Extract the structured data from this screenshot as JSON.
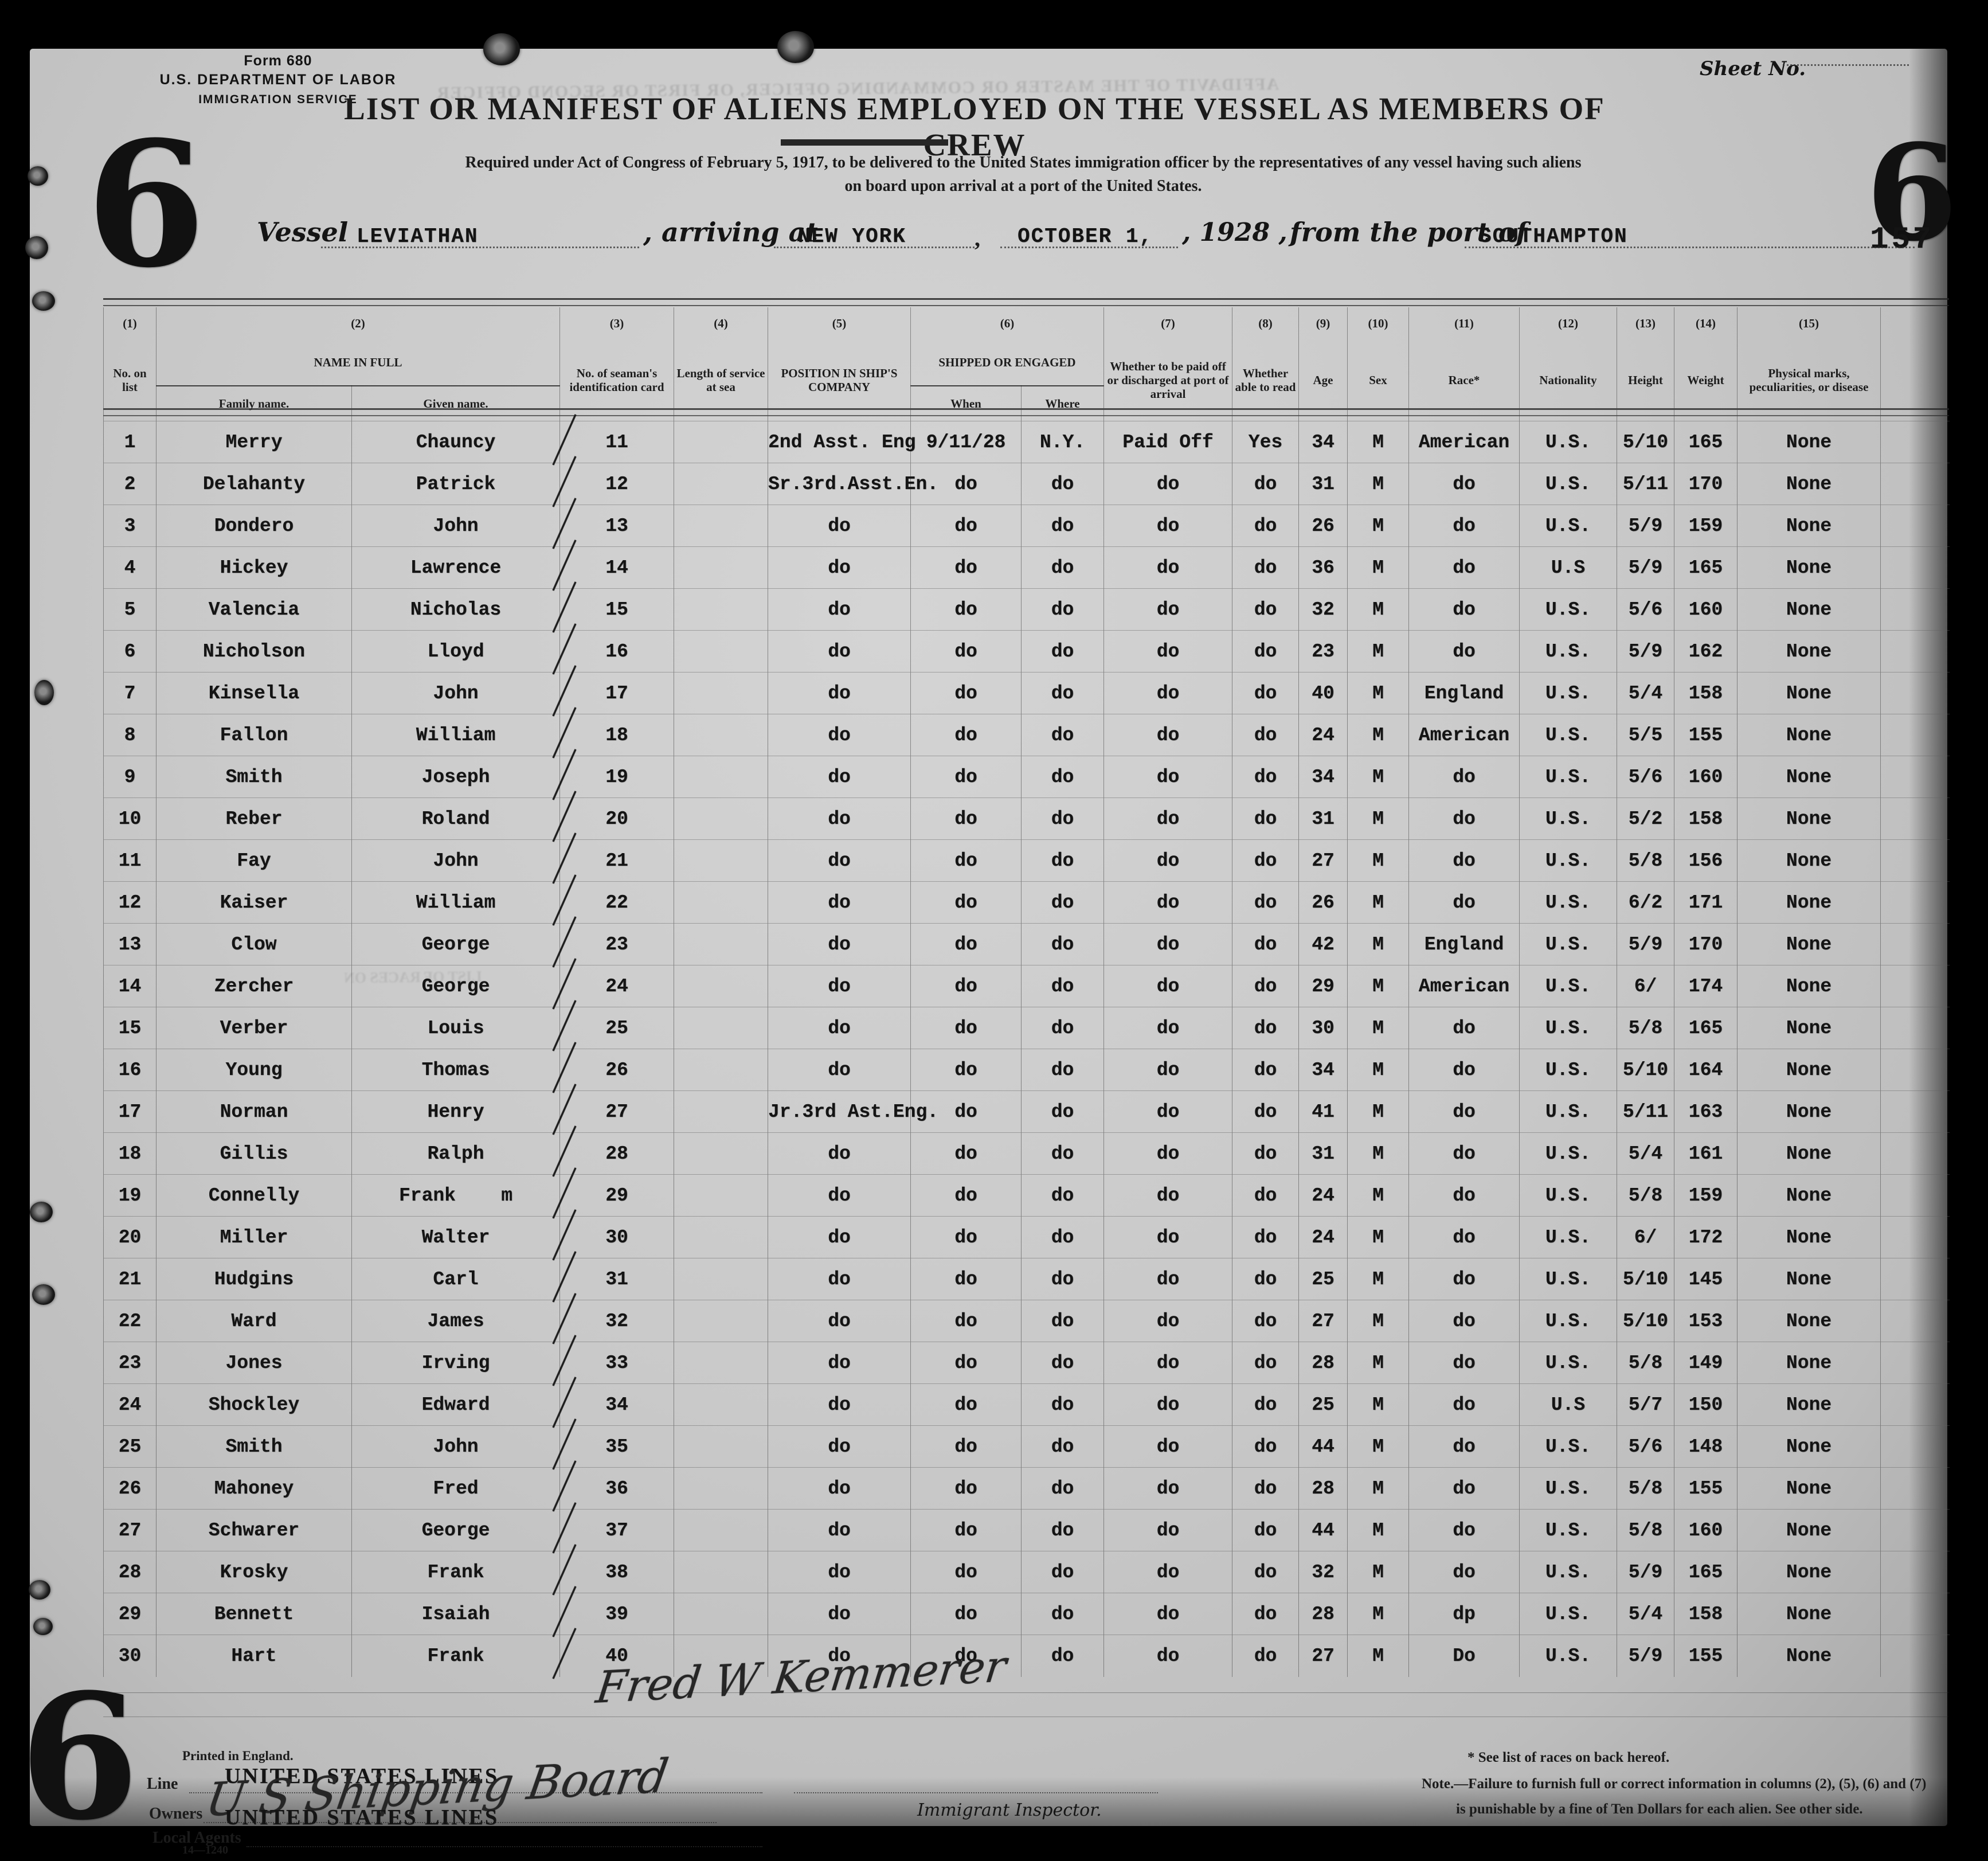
{
  "form": {
    "form_no": "Form 680",
    "department": "U.S. DEPARTMENT OF LABOR",
    "service": "IMMIGRATION SERVICE",
    "sheet_no_label": "Sheet No.",
    "stamp_left": "6",
    "stamp_right": "6",
    "stamp_bottom": "6",
    "page_number": "157",
    "printed_in": "Printed in England."
  },
  "title": "LIST OR MANIFEST OF ALIENS EMPLOYED ON THE VESSEL AS MEMBERS OF CREW",
  "subtitle_line1": "Required under Act of Congress of February 5, 1917, to be delivered to the United States immigration officer by the representatives of any vessel having such aliens",
  "subtitle_line2": "on board upon arrival at a port of the United States.",
  "vessel_line": {
    "vessel_label": "Vessel",
    "vessel_name": "LEVIATHAN",
    "arriving_label": ", arriving at",
    "arrival_port": "NEW YORK",
    "comma": ",",
    "date": "OCTOBER 1,",
    "year": ", 1928 ,",
    "from_label": "from the port of",
    "origin_port": "SOUTHAMPTON"
  },
  "ghost": {
    "affidavit": "AFFIDAVIT OF THE MASTER OR COMMANDING OFFICER, OR FIRST OR SECOND OFFICER",
    "races": "LIST OF RACES ON"
  },
  "table": {
    "col_numbers": [
      "(1)",
      "(2)",
      "(3)",
      "(4)",
      "(5)",
      "(6)",
      "(7)",
      "(8)",
      "(9)",
      "(10)",
      "(11)",
      "(12)",
      "(13)",
      "(14)",
      "(15)"
    ],
    "headers": {
      "no_on_list": "No. on list",
      "name_in_full": "NAME IN FULL",
      "family_name": "Family name.",
      "given_name": "Given name.",
      "seaman_card": "No. of seaman's identification card",
      "length_of_service": "Length of service at sea",
      "position": "POSITION IN SHIP'S COMPANY",
      "shipped_or_engaged": "SHIPPED OR ENGAGED",
      "when": "When",
      "where": "Where",
      "paid_off": "Whether to be paid off or discharged at port of arrival",
      "able_to_read": "Whether able to read",
      "age": "Age",
      "sex": "Sex",
      "race": "Race*",
      "nationality": "Nationality",
      "height": "Height",
      "weight": "Weight",
      "marks": "Physical marks, peculiarities, or disease"
    },
    "rows": [
      {
        "no": "1",
        "family": "Merry",
        "given": "Chauncy",
        "card": "11",
        "service": "",
        "position": "2nd Asst. Eng",
        "when": "9/11/28",
        "where": "N.Y.",
        "paid": "Paid Off",
        "read": "Yes",
        "age": "34",
        "sex": "M",
        "race": "American",
        "nat": "U.S.",
        "height": "5/10",
        "weight": "165",
        "marks": "None"
      },
      {
        "no": "2",
        "family": "Delahanty",
        "given": "Patrick",
        "card": "12",
        "service": "",
        "position": "Sr.3rd.Asst.En.",
        "when": "do",
        "where": "do",
        "paid": "do",
        "read": "do",
        "age": "31",
        "sex": "M",
        "race": "do",
        "nat": "U.S.",
        "height": "5/11",
        "weight": "170",
        "marks": "None"
      },
      {
        "no": "3",
        "family": "Dondero",
        "given": "John",
        "card": "13",
        "service": "",
        "position": "do",
        "when": "do",
        "where": "do",
        "paid": "do",
        "read": "do",
        "age": "26",
        "sex": "M",
        "race": "do",
        "nat": "U.S.",
        "height": "5/9",
        "weight": "159",
        "marks": "None"
      },
      {
        "no": "4",
        "family": "Hickey",
        "given": "Lawrence",
        "card": "14",
        "service": "",
        "position": "do",
        "when": "do",
        "where": "do",
        "paid": "do",
        "read": "do",
        "age": "36",
        "sex": "M",
        "race": "do",
        "nat": "U.S",
        "height": "5/9",
        "weight": "165",
        "marks": "None"
      },
      {
        "no": "5",
        "family": "Valencia",
        "given": "Nicholas",
        "card": "15",
        "service": "",
        "position": "do",
        "when": "do",
        "where": "do",
        "paid": "do",
        "read": "do",
        "age": "32",
        "sex": "M",
        "race": "do",
        "nat": "U.S.",
        "height": "5/6",
        "weight": "160",
        "marks": "None"
      },
      {
        "no": "6",
        "family": "Nicholson",
        "given": "Lloyd",
        "card": "16",
        "service": "",
        "position": "do",
        "when": "do",
        "where": "do",
        "paid": "do",
        "read": "do",
        "age": "23",
        "sex": "M",
        "race": "do",
        "nat": "U.S.",
        "height": "5/9",
        "weight": "162",
        "marks": "None"
      },
      {
        "no": "7",
        "family": "Kinsella",
        "given": "John",
        "card": "17",
        "service": "",
        "position": "do",
        "when": "do",
        "where": "do",
        "paid": "do",
        "read": "do",
        "age": "40",
        "sex": "M",
        "race": "England",
        "nat": "U.S.",
        "height": "5/4",
        "weight": "158",
        "marks": "None"
      },
      {
        "no": "8",
        "family": "Fallon",
        "given": "William",
        "card": "18",
        "service": "",
        "position": "do",
        "when": "do",
        "where": "do",
        "paid": "do",
        "read": "do",
        "age": "24",
        "sex": "M",
        "race": "American",
        "nat": "U.S.",
        "height": "5/5",
        "weight": "155",
        "marks": "None"
      },
      {
        "no": "9",
        "family": "Smith",
        "given": "Joseph",
        "card": "19",
        "service": "",
        "position": "do",
        "when": "do",
        "where": "do",
        "paid": "do",
        "read": "do",
        "age": "34",
        "sex": "M",
        "race": "do",
        "nat": "U.S.",
        "height": "5/6",
        "weight": "160",
        "marks": "None"
      },
      {
        "no": "10",
        "family": "Reber",
        "given": "Roland",
        "card": "20",
        "service": "",
        "position": "do",
        "when": "do",
        "where": "do",
        "paid": "do",
        "read": "do",
        "age": "31",
        "sex": "M",
        "race": "do",
        "nat": "U.S.",
        "height": "5/2",
        "weight": "158",
        "marks": "None"
      },
      {
        "no": "11",
        "family": "Fay",
        "given": "John",
        "card": "21",
        "service": "",
        "position": "do",
        "when": "do",
        "where": "do",
        "paid": "do",
        "read": "do",
        "age": "27",
        "sex": "M",
        "race": "do",
        "nat": "U.S.",
        "height": "5/8",
        "weight": "156",
        "marks": "None"
      },
      {
        "no": "12",
        "family": "Kaiser",
        "given": "William",
        "card": "22",
        "service": "",
        "position": "do",
        "when": "do",
        "where": "do",
        "paid": "do",
        "read": "do",
        "age": "26",
        "sex": "M",
        "race": "do",
        "nat": "U.S.",
        "height": "6/2",
        "weight": "171",
        "marks": "None"
      },
      {
        "no": "13",
        "family": "Clow",
        "given": "George",
        "card": "23",
        "service": "",
        "position": "do",
        "when": "do",
        "where": "do",
        "paid": "do",
        "read": "do",
        "age": "42",
        "sex": "M",
        "race": "England",
        "nat": "U.S.",
        "height": "5/9",
        "weight": "170",
        "marks": "None"
      },
      {
        "no": "14",
        "family": "Zercher",
        "given": "George",
        "card": "24",
        "service": "",
        "position": "do",
        "when": "do",
        "where": "do",
        "paid": "do",
        "read": "do",
        "age": "29",
        "sex": "M",
        "race": "American",
        "nat": "U.S.",
        "height": "6/",
        "weight": "174",
        "marks": "None"
      },
      {
        "no": "15",
        "family": "Verber",
        "given": "Louis",
        "card": "25",
        "service": "",
        "position": "do",
        "when": "do",
        "where": "do",
        "paid": "do",
        "read": "do",
        "age": "30",
        "sex": "M",
        "race": "do",
        "nat": "U.S.",
        "height": "5/8",
        "weight": "165",
        "marks": "None"
      },
      {
        "no": "16",
        "family": "Young",
        "given": "Thomas",
        "card": "26",
        "service": "",
        "position": "do",
        "when": "do",
        "where": "do",
        "paid": "do",
        "read": "do",
        "age": "34",
        "sex": "M",
        "race": "do",
        "nat": "U.S.",
        "height": "5/10",
        "weight": "164",
        "marks": "None"
      },
      {
        "no": "17",
        "family": "Norman",
        "given": "Henry",
        "card": "27",
        "service": "",
        "position": "Jr.3rd Ast.Eng.",
        "when": "do",
        "where": "do",
        "paid": "do",
        "read": "do",
        "age": "41",
        "sex": "M",
        "race": "do",
        "nat": "U.S.",
        "height": "5/11",
        "weight": "163",
        "marks": "None"
      },
      {
        "no": "18",
        "family": "Gillis",
        "given": "Ralph",
        "card": "28",
        "service": "",
        "position": "do",
        "when": "do",
        "where": "do",
        "paid": "do",
        "read": "do",
        "age": "31",
        "sex": "M",
        "race": "do",
        "nat": "U.S.",
        "height": "5/4",
        "weight": "161",
        "marks": "None"
      },
      {
        "no": "19",
        "family": "Connelly",
        "given": "Frank    m",
        "card": "29",
        "service": "",
        "position": "do",
        "when": "do",
        "where": "do",
        "paid": "do",
        "read": "do",
        "age": "24",
        "sex": "M",
        "race": "do",
        "nat": "U.S.",
        "height": "5/8",
        "weight": "159",
        "marks": "None"
      },
      {
        "no": "20",
        "family": "Miller",
        "given": "Walter",
        "card": "30",
        "service": "",
        "position": "do",
        "when": "do",
        "where": "do",
        "paid": "do",
        "read": "do",
        "age": "24",
        "sex": "M",
        "race": "do",
        "nat": "U.S.",
        "height": "6/",
        "weight": "172",
        "marks": "None"
      },
      {
        "no": "21",
        "family": "Hudgins",
        "given": "Carl",
        "card": "31",
        "service": "",
        "position": "do",
        "when": "do",
        "where": "do",
        "paid": "do",
        "read": "do",
        "age": "25",
        "sex": "M",
        "race": "do",
        "nat": "U.S.",
        "height": "5/10",
        "weight": "145",
        "marks": "None"
      },
      {
        "no": "22",
        "family": "Ward",
        "given": "James",
        "card": "32",
        "service": "",
        "position": "do",
        "when": "do",
        "where": "do",
        "paid": "do",
        "read": "do",
        "age": "27",
        "sex": "M",
        "race": "do",
        "nat": "U.S.",
        "height": "5/10",
        "weight": "153",
        "marks": "None"
      },
      {
        "no": "23",
        "family": "Jones",
        "given": "Irving",
        "card": "33",
        "service": "",
        "position": "do",
        "when": "do",
        "where": "do",
        "paid": "do",
        "read": "do",
        "age": "28",
        "sex": "M",
        "race": "do",
        "nat": "U.S.",
        "height": "5/8",
        "weight": "149",
        "marks": "None"
      },
      {
        "no": "24",
        "family": "Shockley",
        "given": "Edward",
        "card": "34",
        "service": "",
        "position": "do",
        "when": "do",
        "where": "do",
        "paid": "do",
        "read": "do",
        "age": "25",
        "sex": "M",
        "race": "do",
        "nat": "U.S",
        "height": "5/7",
        "weight": "150",
        "marks": "None"
      },
      {
        "no": "25",
        "family": "Smith",
        "given": "John",
        "card": "35",
        "service": "",
        "position": "do",
        "when": "do",
        "where": "do",
        "paid": "do",
        "read": "do",
        "age": "44",
        "sex": "M",
        "race": "do",
        "nat": "U.S.",
        "height": "5/6",
        "weight": "148",
        "marks": "None"
      },
      {
        "no": "26",
        "family": "Mahoney",
        "given": "Fred",
        "card": "36",
        "service": "",
        "position": "do",
        "when": "do",
        "where": "do",
        "paid": "do",
        "read": "do",
        "age": "28",
        "sex": "M",
        "race": "do",
        "nat": "U.S.",
        "height": "5/8",
        "weight": "155",
        "marks": "None"
      },
      {
        "no": "27",
        "family": "Schwarer",
        "given": "George",
        "card": "37",
        "service": "",
        "position": "do",
        "when": "do",
        "where": "do",
        "paid": "do",
        "read": "do",
        "age": "44",
        "sex": "M",
        "race": "do",
        "nat": "U.S.",
        "height": "5/8",
        "weight": "160",
        "marks": "None"
      },
      {
        "no": "28",
        "family": "Krosky",
        "given": "Frank",
        "card": "38",
        "service": "",
        "position": "do",
        "when": "do",
        "where": "do",
        "paid": "do",
        "read": "do",
        "age": "32",
        "sex": "M",
        "race": "do",
        "nat": "U.S.",
        "height": "5/9",
        "weight": "165",
        "marks": "None"
      },
      {
        "no": "29",
        "family": "Bennett",
        "given": "Isaiah",
        "card": "39",
        "service": "",
        "position": "do",
        "when": "do",
        "where": "do",
        "paid": "do",
        "read": "do",
        "age": "28",
        "sex": "M",
        "race": "dp",
        "nat": "U.S.",
        "height": "5/4",
        "weight": "158",
        "marks": "None"
      },
      {
        "no": "30",
        "family": "Hart",
        "given": "Frank",
        "card": "40",
        "service": "",
        "position": "do",
        "when": "do",
        "where": "do",
        "paid": "do",
        "read": "do",
        "age": "27",
        "sex": "M",
        "race": "Do",
        "nat": "U.S.",
        "height": "5/9",
        "weight": "155",
        "marks": "None"
      }
    ]
  },
  "signatures": {
    "master": "Fred W Kemmerer",
    "owners": "U S Shipping Board"
  },
  "footer": {
    "line_label": "Line",
    "line_value": "UNITED STATES LINES",
    "owners_label": "Owners",
    "agents_label": "Local Agents",
    "agents_value": "UNITED STATES LINES",
    "form_code": "14—1240",
    "inspector_label": "Immigrant Inspector.",
    "races_note": "* See list of races on back hereof.",
    "note_line1": "Note.—Failure to furnish full or correct information in columns (2), (5), (6) and (7)",
    "note_line2": "is punishable by a fine of Ten Dollars for each alien.  See other side."
  }
}
